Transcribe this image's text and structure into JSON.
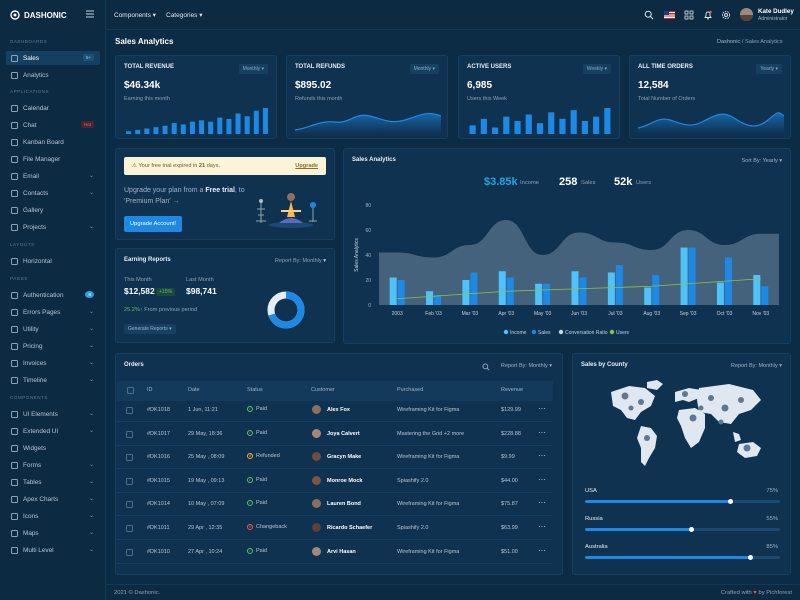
{
  "brand": "DASHONIC",
  "sidebar": {
    "dashboards": "DASHBOARDS",
    "applications": "APPLICATIONS",
    "layouts": "LAYOUTS",
    "pages": "PAGES",
    "components": "COMPONENTS",
    "sales": "Sales",
    "sales_badge": "5+",
    "analytics": "Analytics",
    "calendar": "Calendar",
    "chat": "Chat",
    "chat_badge": "Hot",
    "kanban": "Kanban Board",
    "file_manager": "File Manager",
    "email": "Email",
    "contacts": "Contacts",
    "gallery": "Gallery",
    "projects": "Projects",
    "horizontal": "Horizontal",
    "authentication": "Authentication",
    "auth_badge": "8",
    "errors": "Errors Pages",
    "utility": "Utility",
    "pricing": "Pricing",
    "invoices": "Invoices",
    "timeline": "Timeline",
    "ui_elements": "UI Elements",
    "extended_ui": "Extended UI",
    "widgets": "Widgets",
    "forms": "Forms",
    "tables": "Tables",
    "apex_charts": "Apex Charts",
    "icons": "Icons",
    "maps": "Maps",
    "multi_level": "Multi Level"
  },
  "header": {
    "components": "Components",
    "categories": "Categories",
    "user_name": "Kate Dudley",
    "user_role": "Administrator"
  },
  "page": {
    "title": "Sales Analytics",
    "crumb1": "Dashonic",
    "crumb2": "Sales Analytics"
  },
  "stats": [
    {
      "label": "TOTAL REVENUE",
      "period": "Monthly",
      "value": "$46.34k",
      "sub": "Earning this month",
      "bars": [
        2,
        3,
        4,
        5,
        6,
        8,
        7,
        9,
        10,
        9,
        12,
        11,
        15,
        13,
        17,
        19
      ]
    },
    {
      "label": "TOTAL REFUNDS",
      "period": "Monthly",
      "value": "$895.02",
      "sub": "Refunds this month"
    },
    {
      "label": "ACTIVE USERS",
      "period": "Weekly",
      "value": "6,985",
      "sub": "Users this Week",
      "bars": [
        8,
        14,
        6,
        16,
        12,
        18,
        10,
        20,
        14,
        22,
        12,
        16,
        24
      ]
    },
    {
      "label": "ALL TIME ORDERS",
      "period": "Yearly",
      "value": "12,584",
      "sub": "Total Number of Orders"
    }
  ],
  "trial": {
    "text_pre": "Your free trial expired in ",
    "days": "21",
    "text_post": " days.",
    "upgrade": "Upgrade",
    "msg1": "Upgrade your plan from a ",
    "free": "Free",
    "msg2": "trial",
    "msg3": ", to 'Premium Plan'",
    "btn": "Upgrade Account!"
  },
  "earning": {
    "title": "Earning Reports",
    "report_by": "Report By:",
    "period": "Monthly",
    "this_month": "This Month",
    "last_month": "Last Month",
    "this_value": "$12,582",
    "change": "+15%",
    "last_value": "$98,741",
    "pct": "25.2%",
    "from_prev": "From previous period",
    "gen": "Generate Reports",
    "donut": 0.7
  },
  "sales_analytics": {
    "title": "Sales Analytics",
    "sort": "Sort By: Yearly",
    "income": "$3.85k",
    "income_label": "Income",
    "sales": "258",
    "sales_label": "Sales",
    "users": "52k",
    "users_label": "Users"
  },
  "chart_data": {
    "type": "bar",
    "ylabel": "Sales Analytics",
    "categories": [
      "2003",
      "Feb '03",
      "Mar '03",
      "Apr '03",
      "May '03",
      "Jun '03",
      "Jul '03",
      "Aug '03",
      "Sep '03",
      "Oct '03",
      "Nov '03"
    ],
    "ylim": [
      0,
      80
    ],
    "yticks": [
      "0",
      "20",
      "40",
      "60",
      "80"
    ],
    "series": [
      {
        "name": "Income",
        "values": [
          22,
          11,
          20,
          27,
          17,
          27,
          26,
          14,
          46,
          18,
          24
        ]
      },
      {
        "name": "Sales",
        "values": [
          20,
          8,
          26,
          22,
          17,
          22,
          32,
          24,
          46,
          38,
          15
        ]
      },
      {
        "name": "Conversation Ratio",
        "values": [
          5,
          7,
          9,
          11,
          12,
          13,
          14,
          15,
          17,
          19,
          21
        ]
      },
      {
        "name": "Users",
        "values": [
          42,
          38,
          48,
          68,
          40,
          58,
          50,
          44,
          60,
          48,
          57
        ]
      }
    ],
    "colors": {
      "Income": "#4fc3f7",
      "Sales": "#1e88e5",
      "Conversation Ratio": "#c8d6e0",
      "Users": "#8bc34a"
    }
  },
  "orders": {
    "title": "Orders",
    "report_by": "Report By:",
    "period": "Monthly",
    "cols": {
      "id": "ID",
      "date": "Date",
      "status": "Status",
      "customer": "Customer",
      "purchased": "Purchased",
      "revenue": "Revenue"
    },
    "rows": [
      {
        "id": "#DK1018",
        "date": "1 Jun, 11:21",
        "status": "Paid",
        "customer": "Alex Fox",
        "purchased": "Wireframing Kit for Figma",
        "revenue": "$129.99"
      },
      {
        "id": "#DK1017",
        "date": "29 May, 18:36",
        "status": "Paid",
        "customer": "Joya Calvert",
        "purchased": "Mastering the Grid +2 more",
        "revenue": "$228.88"
      },
      {
        "id": "#DK1016",
        "date": "25 May , 08:09",
        "status": "Refunded",
        "customer": "Gracyn Make",
        "purchased": "Wireframing Kit for Figma",
        "revenue": "$9.99"
      },
      {
        "id": "#DK1015",
        "date": "19 May , 09:13",
        "status": "Paid",
        "customer": "Monroe Mock",
        "purchased": "Spiashify 2.0",
        "revenue": "$44.00"
      },
      {
        "id": "#DK1014",
        "date": "10 May , 07:09",
        "status": "Paid",
        "customer": "Lauren Bond",
        "purchased": "Wireframing Kit for Figma",
        "revenue": "$75.87"
      },
      {
        "id": "#DK1011",
        "date": "29 Apr , 12:35",
        "status": "Changeback",
        "customer": "Ricardo Schaefer",
        "purchased": "Spiashify 2.0",
        "revenue": "$63.99"
      },
      {
        "id": "#DK1010",
        "date": "27 Apr , 10:24",
        "status": "Paid",
        "customer": "Arvi Hasan",
        "purchased": "Wireframing Kit for Figma",
        "revenue": "$51.00"
      }
    ]
  },
  "county": {
    "title": "Sales by County",
    "report_by": "Report By:",
    "period": "Monthly",
    "items": [
      {
        "name": "USA",
        "pct": "75%",
        "value": 0.75
      },
      {
        "name": "Russia",
        "pct": "55%",
        "value": 0.55
      },
      {
        "name": "Australia",
        "pct": "85%",
        "value": 0.85
      }
    ]
  },
  "footer": {
    "left": "2021 © Dashonic.",
    "crafted": "Crafted with",
    "by": "by Pichforest"
  }
}
